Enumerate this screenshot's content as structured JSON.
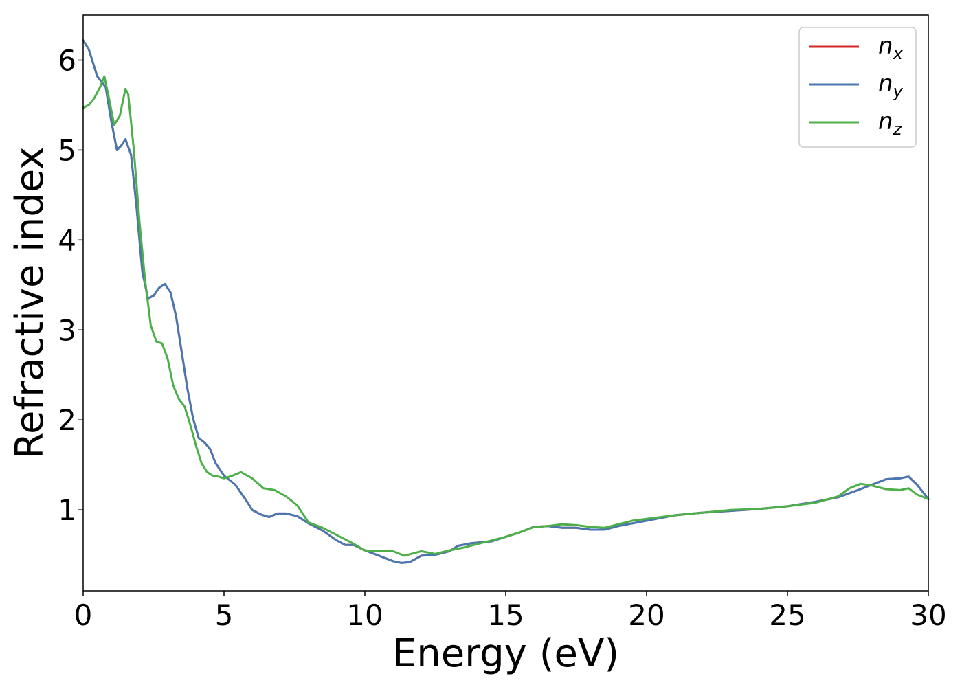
{
  "chart_data": {
    "type": "line",
    "title": "",
    "xlabel": "Energy (eV)",
    "ylabel": "Refractive index",
    "xlim": [
      0,
      30
    ],
    "ylim": [
      0.1,
      6.5
    ],
    "x_ticks": [
      0,
      5,
      10,
      15,
      20,
      25,
      30
    ],
    "y_ticks": [
      1,
      2,
      3,
      4,
      5,
      6
    ],
    "grid": false,
    "legend_position": "top-right",
    "series": [
      {
        "name": "n",
        "subscript": "x",
        "color": "#d62728",
        "points": [
          [
            0,
            6.22
          ],
          [
            0.2,
            6.12
          ],
          [
            0.5,
            5.82
          ],
          [
            0.8,
            5.7
          ],
          [
            1.0,
            5.32
          ],
          [
            1.2,
            5.0
          ],
          [
            1.35,
            5.05
          ],
          [
            1.5,
            5.12
          ],
          [
            1.7,
            4.95
          ],
          [
            1.9,
            4.35
          ],
          [
            2.1,
            3.65
          ],
          [
            2.3,
            3.35
          ],
          [
            2.5,
            3.38
          ],
          [
            2.7,
            3.47
          ],
          [
            2.9,
            3.51
          ],
          [
            3.1,
            3.42
          ],
          [
            3.3,
            3.15
          ],
          [
            3.5,
            2.75
          ],
          [
            3.7,
            2.35
          ],
          [
            3.9,
            2.02
          ],
          [
            4.1,
            1.8
          ],
          [
            4.3,
            1.75
          ],
          [
            4.5,
            1.68
          ],
          [
            4.7,
            1.52
          ],
          [
            5.0,
            1.38
          ],
          [
            5.4,
            1.28
          ],
          [
            5.8,
            1.1
          ],
          [
            6.0,
            1.0
          ],
          [
            6.3,
            0.95
          ],
          [
            6.6,
            0.92
          ],
          [
            6.9,
            0.96
          ],
          [
            7.2,
            0.96
          ],
          [
            7.6,
            0.93
          ],
          [
            8.0,
            0.85
          ],
          [
            8.5,
            0.77
          ],
          [
            9.0,
            0.66
          ],
          [
            9.3,
            0.61
          ],
          [
            9.6,
            0.61
          ],
          [
            10.0,
            0.55
          ],
          [
            10.5,
            0.49
          ],
          [
            11.0,
            0.43
          ],
          [
            11.3,
            0.41
          ],
          [
            11.6,
            0.42
          ],
          [
            12.0,
            0.49
          ],
          [
            12.5,
            0.5
          ],
          [
            13.0,
            0.54
          ],
          [
            13.3,
            0.6
          ],
          [
            13.8,
            0.63
          ],
          [
            14.5,
            0.65
          ],
          [
            15.0,
            0.7
          ],
          [
            15.5,
            0.75
          ],
          [
            16.0,
            0.81
          ],
          [
            16.5,
            0.82
          ],
          [
            17.0,
            0.8
          ],
          [
            17.5,
            0.8
          ],
          [
            18.0,
            0.78
          ],
          [
            18.5,
            0.78
          ],
          [
            19.0,
            0.82
          ],
          [
            20.0,
            0.88
          ],
          [
            21.0,
            0.94
          ],
          [
            22.0,
            0.97
          ],
          [
            23.0,
            0.99
          ],
          [
            24.0,
            1.01
          ],
          [
            25.0,
            1.04
          ],
          [
            26.0,
            1.09
          ],
          [
            26.8,
            1.14
          ],
          [
            27.5,
            1.22
          ],
          [
            28.0,
            1.28
          ],
          [
            28.5,
            1.34
          ],
          [
            29.0,
            1.35
          ],
          [
            29.3,
            1.37
          ],
          [
            29.6,
            1.28
          ],
          [
            30.0,
            1.12
          ]
        ]
      },
      {
        "name": "n",
        "subscript": "y",
        "color": "#4878b0",
        "points": [
          [
            0,
            6.22
          ],
          [
            0.2,
            6.12
          ],
          [
            0.5,
            5.82
          ],
          [
            0.8,
            5.7
          ],
          [
            1.0,
            5.32
          ],
          [
            1.2,
            5.0
          ],
          [
            1.35,
            5.05
          ],
          [
            1.5,
            5.12
          ],
          [
            1.7,
            4.95
          ],
          [
            1.9,
            4.35
          ],
          [
            2.1,
            3.65
          ],
          [
            2.3,
            3.35
          ],
          [
            2.5,
            3.38
          ],
          [
            2.7,
            3.47
          ],
          [
            2.9,
            3.51
          ],
          [
            3.1,
            3.42
          ],
          [
            3.3,
            3.15
          ],
          [
            3.5,
            2.75
          ],
          [
            3.7,
            2.35
          ],
          [
            3.9,
            2.02
          ],
          [
            4.1,
            1.8
          ],
          [
            4.3,
            1.75
          ],
          [
            4.5,
            1.68
          ],
          [
            4.7,
            1.52
          ],
          [
            5.0,
            1.38
          ],
          [
            5.4,
            1.28
          ],
          [
            5.8,
            1.1
          ],
          [
            6.0,
            1.0
          ],
          [
            6.3,
            0.95
          ],
          [
            6.6,
            0.92
          ],
          [
            6.9,
            0.96
          ],
          [
            7.2,
            0.96
          ],
          [
            7.6,
            0.93
          ],
          [
            8.0,
            0.85
          ],
          [
            8.5,
            0.77
          ],
          [
            9.0,
            0.66
          ],
          [
            9.3,
            0.61
          ],
          [
            9.6,
            0.61
          ],
          [
            10.0,
            0.55
          ],
          [
            10.5,
            0.49
          ],
          [
            11.0,
            0.43
          ],
          [
            11.3,
            0.41
          ],
          [
            11.6,
            0.42
          ],
          [
            12.0,
            0.49
          ],
          [
            12.5,
            0.5
          ],
          [
            13.0,
            0.54
          ],
          [
            13.3,
            0.6
          ],
          [
            13.8,
            0.63
          ],
          [
            14.5,
            0.65
          ],
          [
            15.0,
            0.7
          ],
          [
            15.5,
            0.75
          ],
          [
            16.0,
            0.81
          ],
          [
            16.5,
            0.82
          ],
          [
            17.0,
            0.8
          ],
          [
            17.5,
            0.8
          ],
          [
            18.0,
            0.78
          ],
          [
            18.5,
            0.78
          ],
          [
            19.0,
            0.82
          ],
          [
            20.0,
            0.88
          ],
          [
            21.0,
            0.94
          ],
          [
            22.0,
            0.97
          ],
          [
            23.0,
            0.99
          ],
          [
            24.0,
            1.01
          ],
          [
            25.0,
            1.04
          ],
          [
            26.0,
            1.09
          ],
          [
            26.8,
            1.14
          ],
          [
            27.5,
            1.22
          ],
          [
            28.0,
            1.28
          ],
          [
            28.5,
            1.34
          ],
          [
            29.0,
            1.35
          ],
          [
            29.3,
            1.37
          ],
          [
            29.6,
            1.28
          ],
          [
            30.0,
            1.12
          ]
        ]
      },
      {
        "name": "n",
        "subscript": "z",
        "color": "#4daf4a",
        "points": [
          [
            0,
            5.47
          ],
          [
            0.2,
            5.5
          ],
          [
            0.4,
            5.58
          ],
          [
            0.6,
            5.7
          ],
          [
            0.75,
            5.82
          ],
          [
            0.9,
            5.6
          ],
          [
            1.1,
            5.28
          ],
          [
            1.3,
            5.38
          ],
          [
            1.5,
            5.68
          ],
          [
            1.6,
            5.62
          ],
          [
            1.8,
            5.0
          ],
          [
            2.0,
            4.2
          ],
          [
            2.2,
            3.55
          ],
          [
            2.4,
            3.05
          ],
          [
            2.6,
            2.87
          ],
          [
            2.8,
            2.85
          ],
          [
            3.0,
            2.68
          ],
          [
            3.2,
            2.38
          ],
          [
            3.4,
            2.23
          ],
          [
            3.6,
            2.15
          ],
          [
            3.8,
            1.95
          ],
          [
            4.0,
            1.72
          ],
          [
            4.2,
            1.52
          ],
          [
            4.4,
            1.42
          ],
          [
            4.6,
            1.38
          ],
          [
            4.8,
            1.37
          ],
          [
            5.0,
            1.35
          ],
          [
            5.3,
            1.38
          ],
          [
            5.6,
            1.42
          ],
          [
            6.0,
            1.35
          ],
          [
            6.4,
            1.24
          ],
          [
            6.8,
            1.22
          ],
          [
            7.2,
            1.15
          ],
          [
            7.6,
            1.05
          ],
          [
            8.0,
            0.86
          ],
          [
            8.5,
            0.8
          ],
          [
            9.0,
            0.72
          ],
          [
            9.5,
            0.64
          ],
          [
            10.0,
            0.55
          ],
          [
            10.5,
            0.54
          ],
          [
            11.0,
            0.54
          ],
          [
            11.4,
            0.49
          ],
          [
            12.0,
            0.54
          ],
          [
            12.5,
            0.51
          ],
          [
            13.0,
            0.55
          ],
          [
            13.5,
            0.58
          ],
          [
            14.5,
            0.66
          ],
          [
            15.0,
            0.7
          ],
          [
            15.5,
            0.75
          ],
          [
            16.0,
            0.81
          ],
          [
            16.5,
            0.82
          ],
          [
            17.0,
            0.84
          ],
          [
            17.5,
            0.83
          ],
          [
            18.0,
            0.81
          ],
          [
            18.5,
            0.8
          ],
          [
            19.0,
            0.84
          ],
          [
            19.5,
            0.88
          ],
          [
            20.0,
            0.9
          ],
          [
            21.0,
            0.94
          ],
          [
            22.0,
            0.97
          ],
          [
            23.0,
            1.0
          ],
          [
            24.0,
            1.01
          ],
          [
            25.0,
            1.04
          ],
          [
            26.0,
            1.08
          ],
          [
            26.8,
            1.15
          ],
          [
            27.2,
            1.24
          ],
          [
            27.6,
            1.29
          ],
          [
            28.0,
            1.27
          ],
          [
            28.5,
            1.23
          ],
          [
            29.0,
            1.22
          ],
          [
            29.3,
            1.24
          ],
          [
            29.6,
            1.17
          ],
          [
            30.0,
            1.12
          ]
        ]
      }
    ]
  }
}
